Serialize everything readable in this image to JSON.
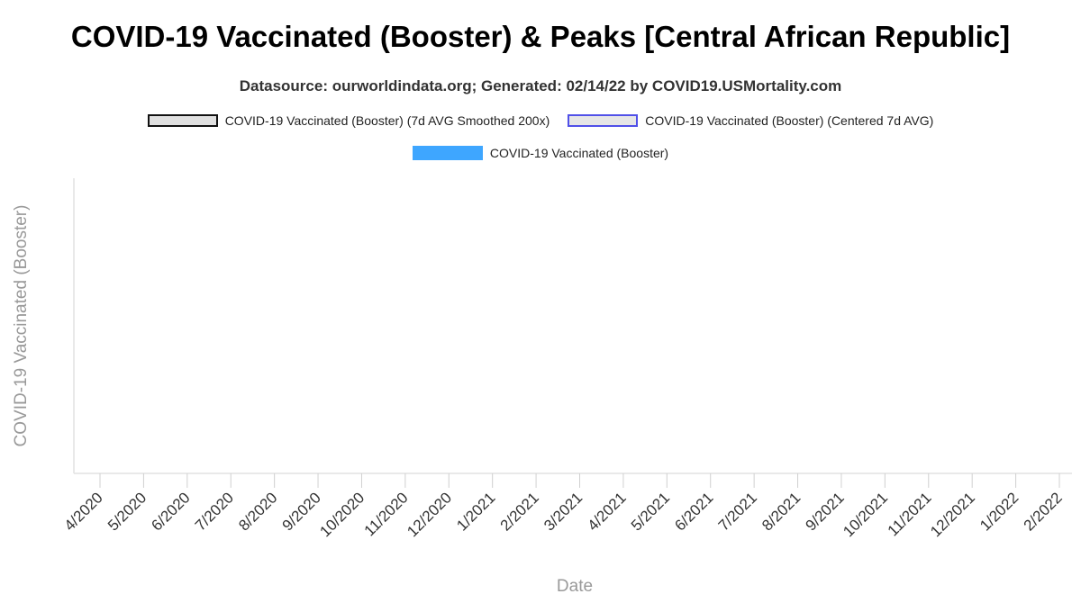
{
  "chart_data": {
    "type": "bar",
    "title": "COVID-19 Vaccinated (Booster) & Peaks [Central African Republic]",
    "subtitle": "Datasource: ourworldindata.org; Generated: 02/14/22 by COVID19.USMortality.com",
    "legend": [
      {
        "name": "COVID-19 Vaccinated (Booster) (7d AVG Smoothed 200x)",
        "style": "outline",
        "color": "#111111"
      },
      {
        "name": "COVID-19 Vaccinated (Booster) (Centered 7d AVG)",
        "style": "outline",
        "color": "#5050e8"
      },
      {
        "name": "COVID-19 Vaccinated (Booster)",
        "style": "fill",
        "color": "#3ea6ff"
      }
    ],
    "xlabel": "Date",
    "ylabel": "COVID-19 Vaccinated (Booster)",
    "categories": [
      "4/2020",
      "5/2020",
      "6/2020",
      "7/2020",
      "8/2020",
      "9/2020",
      "10/2020",
      "11/2020",
      "12/2020",
      "1/2021",
      "2/2021",
      "3/2021",
      "4/2021",
      "5/2021",
      "6/2021",
      "7/2021",
      "8/2021",
      "9/2021",
      "10/2021",
      "11/2021",
      "12/2021",
      "1/2022",
      "2/2022"
    ],
    "series": [],
    "grid": false,
    "legend_position": "top"
  }
}
